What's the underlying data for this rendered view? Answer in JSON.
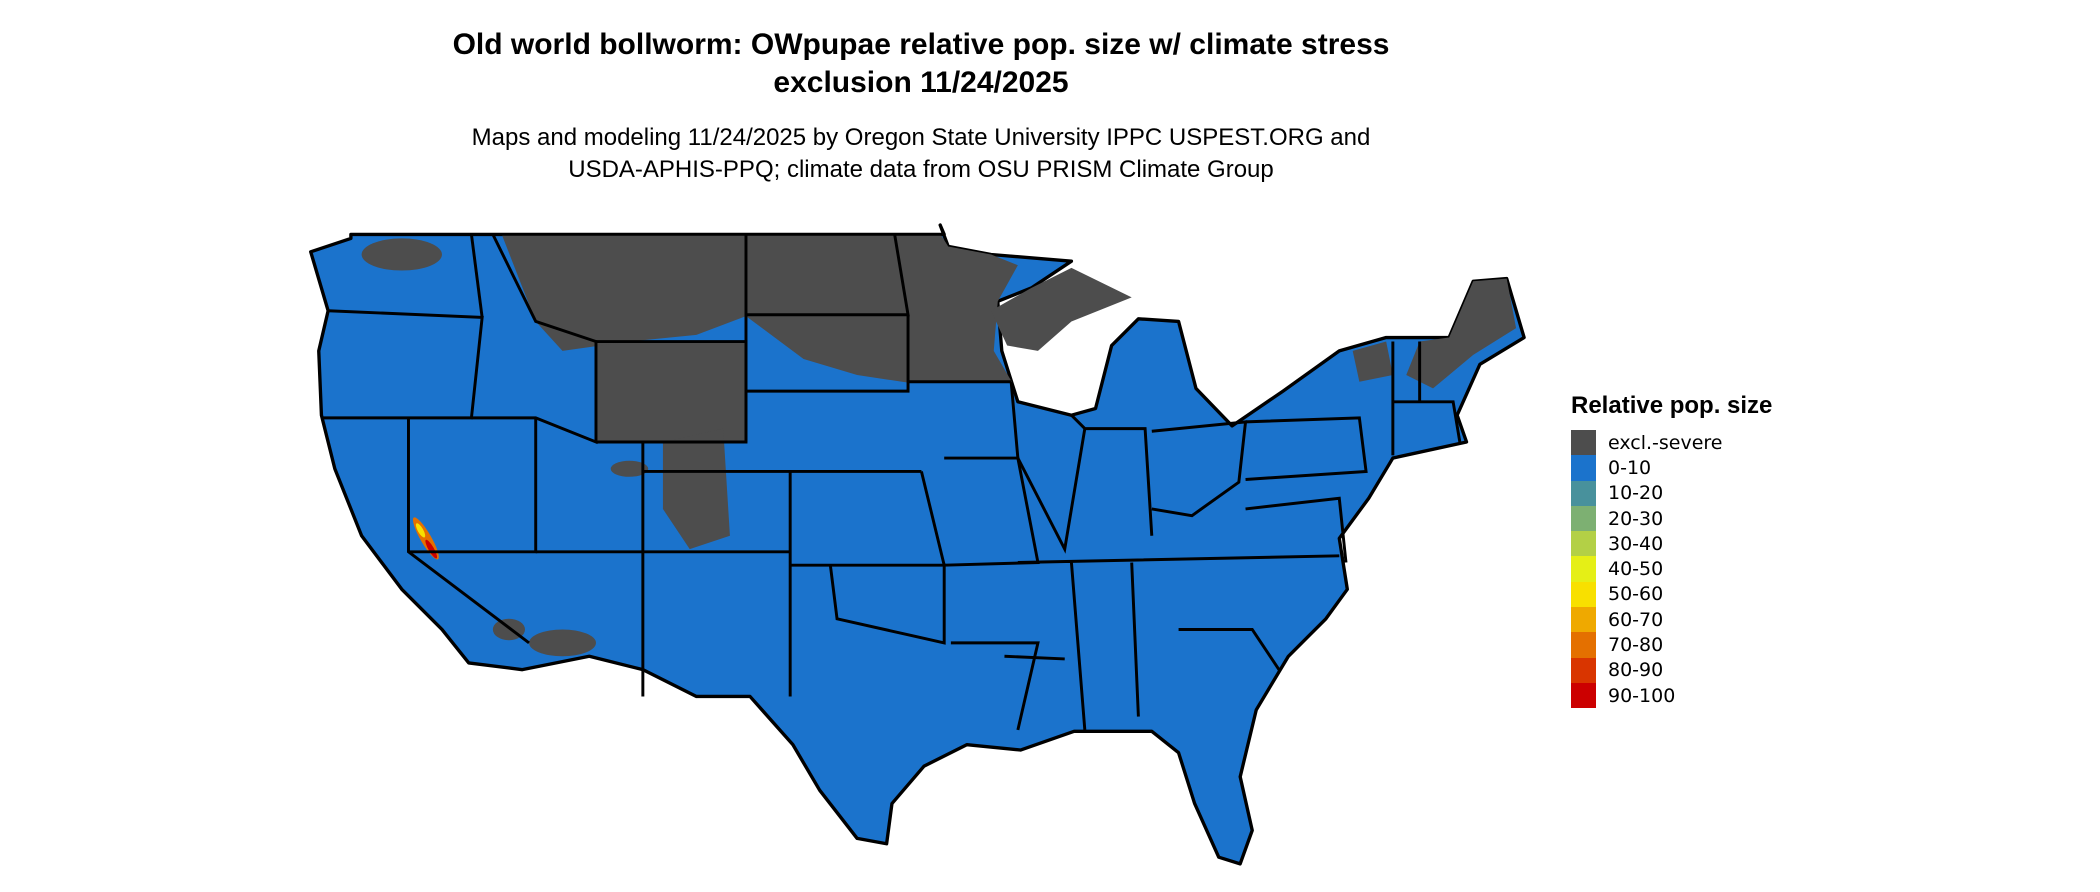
{
  "title_line1": "Old world bollworm: OWpupae relative pop. size w/ climate stress",
  "title_line2": "exclusion 11/24/2025",
  "subtitle_line1": "Maps and modeling 11/24/2025 by Oregon State University IPPC USPEST.ORG and",
  "subtitle_line2": "USDA-APHIS-PPQ; climate data from OSU PRISM Climate Group",
  "map": {
    "region": "Contiguous United States",
    "boundaries": "state",
    "dominant_class": "0-10",
    "excluded_areas": "northern Great Plains, Minnesota, northern Wisconsin/Michigan, northern Maine, Rocky Mountain highlands",
    "hotspot_class": "90-100",
    "hotspot_area": "Central California (Sierra foothills)"
  },
  "legend": {
    "title": "Relative pop. size",
    "items": [
      {
        "label": "excl.-severe",
        "color": "#4d4d4d"
      },
      {
        "label": "0-10",
        "color": "#1b73cc"
      },
      {
        "label": "10-20",
        "color": "#48919c"
      },
      {
        "label": "20-30",
        "color": "#7db072"
      },
      {
        "label": "30-40",
        "color": "#b3d046"
      },
      {
        "label": "40-50",
        "color": "#e5ef16"
      },
      {
        "label": "50-60",
        "color": "#f8e000"
      },
      {
        "label": "60-70",
        "color": "#efa900"
      },
      {
        "label": "70-80",
        "color": "#e47000"
      },
      {
        "label": "80-90",
        "color": "#d93500"
      },
      {
        "label": "90-100",
        "color": "#cc0000"
      }
    ]
  }
}
